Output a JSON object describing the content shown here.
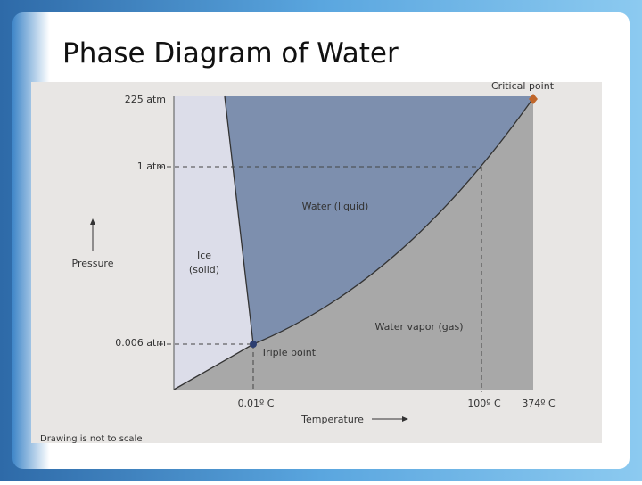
{
  "title": "Phase Diagram of Water",
  "diagram": {
    "pressure_labels": [
      "225 atm",
      "1 atm",
      "0.006 atm"
    ],
    "temperature_labels": [
      "0.01º C",
      "100º C",
      "374º C"
    ],
    "y_axis_label": "Pressure",
    "x_axis_label": "Temperature",
    "regions": [
      "Ice",
      "(solid)",
      "Water (liquid)",
      "Water vapor (gas)"
    ],
    "points": [
      "Triple point",
      "Critical point"
    ],
    "note": "Drawing is not to scale"
  }
}
